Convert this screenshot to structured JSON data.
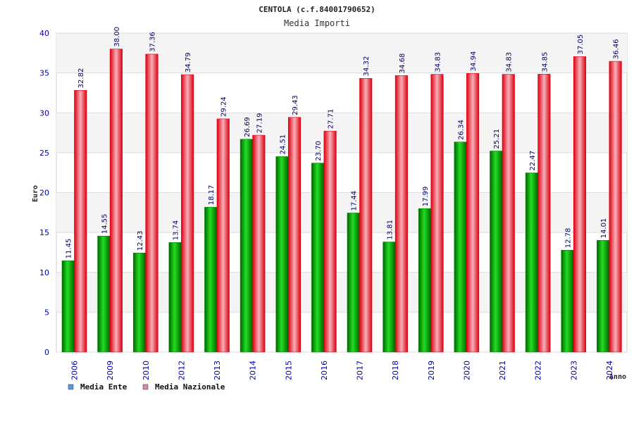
{
  "chart_data": {
    "type": "bar",
    "title": "CENTOLA (c.f.84001790652)",
    "subtitle": "Media Importi",
    "ylabel": "Euro",
    "xlabel": "Anno",
    "ylim": [
      0,
      40
    ],
    "yticks": [
      0,
      5,
      10,
      15,
      20,
      25,
      30,
      35,
      40
    ],
    "categories": [
      "2006",
      "2009",
      "2010",
      "2012",
      "2013",
      "2014",
      "2015",
      "2016",
      "2017",
      "2018",
      "2019",
      "2020",
      "2021",
      "2022",
      "2023",
      "2024"
    ],
    "series": [
      {
        "name": "Media Ente",
        "color": "#00b000",
        "legend_color": "#5599ee",
        "values": [
          11.45,
          14.55,
          12.43,
          13.74,
          18.17,
          26.69,
          24.51,
          23.7,
          17.44,
          13.81,
          17.99,
          26.34,
          25.21,
          22.47,
          12.78,
          14.01
        ],
        "labels": [
          "11.45",
          "14.55",
          "12.43",
          "13.74",
          "18.17",
          "26.69",
          "24.51",
          "23.70",
          "17.44",
          "13.81",
          "17.99",
          "26.34",
          "25.21",
          "22.47",
          "12.78",
          "14.01"
        ]
      },
      {
        "name": "Media Nazionale",
        "color": "#ee1122",
        "legend_color": "#dd88aa",
        "values": [
          32.82,
          38.0,
          37.36,
          34.79,
          29.24,
          27.19,
          29.43,
          27.71,
          34.32,
          34.68,
          34.83,
          34.94,
          34.83,
          34.85,
          37.05,
          36.46
        ],
        "labels": [
          "32.82",
          "38.00",
          "37.36",
          "34.79",
          "29.24",
          "27.19",
          "29.43",
          "27.71",
          "34.32",
          "34.68",
          "34.83",
          "34.94",
          "34.83",
          "34.85",
          "37.05",
          "36.46"
        ]
      }
    ],
    "grid": true,
    "legend": "bottom-left"
  }
}
